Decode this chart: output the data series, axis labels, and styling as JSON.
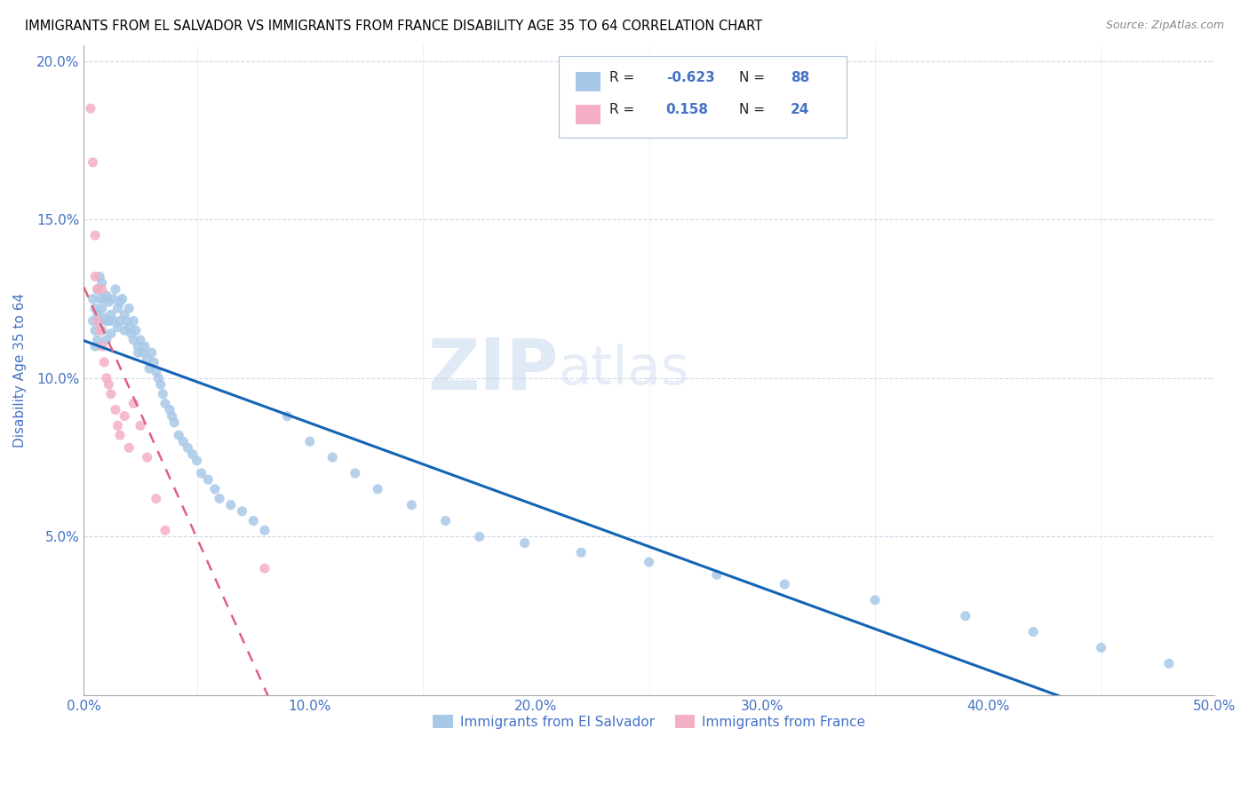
{
  "title": "IMMIGRANTS FROM EL SALVADOR VS IMMIGRANTS FROM FRANCE DISABILITY AGE 35 TO 64 CORRELATION CHART",
  "source": "Source: ZipAtlas.com",
  "ylabel_label": "Disability Age 35 to 64",
  "x_min": 0.0,
  "x_max": 0.5,
  "y_min": 0.0,
  "y_max": 0.205,
  "x_ticks": [
    0.0,
    0.1,
    0.2,
    0.3,
    0.4,
    0.5
  ],
  "x_tick_labels": [
    "0.0%",
    "10.0%",
    "20.0%",
    "30.0%",
    "40.0%",
    "50.0%"
  ],
  "y_ticks": [
    0.0,
    0.05,
    0.1,
    0.15,
    0.2
  ],
  "y_tick_labels": [
    "",
    "5.0%",
    "10.0%",
    "15.0%",
    "20.0%"
  ],
  "el_salvador_color": "#a8c8e8",
  "france_color": "#f4afc4",
  "el_salvador_line_color": "#1464b4",
  "france_line_color": "#e06080",
  "legend_R_el_salvador": "-0.623",
  "legend_N_el_salvador": "88",
  "legend_R_france": "0.158",
  "legend_N_france": "24",
  "watermark_zip": "ZIP",
  "watermark_atlas": "atlas",
  "el_salvador_x": [
    0.004,
    0.004,
    0.005,
    0.005,
    0.005,
    0.006,
    0.006,
    0.006,
    0.007,
    0.007,
    0.007,
    0.008,
    0.008,
    0.008,
    0.009,
    0.009,
    0.01,
    0.01,
    0.01,
    0.011,
    0.011,
    0.012,
    0.012,
    0.013,
    0.013,
    0.014,
    0.015,
    0.015,
    0.016,
    0.016,
    0.017,
    0.018,
    0.018,
    0.019,
    0.02,
    0.02,
    0.021,
    0.022,
    0.022,
    0.023,
    0.024,
    0.024,
    0.025,
    0.026,
    0.027,
    0.028,
    0.029,
    0.03,
    0.031,
    0.032,
    0.033,
    0.034,
    0.035,
    0.036,
    0.038,
    0.039,
    0.04,
    0.042,
    0.044,
    0.046,
    0.048,
    0.05,
    0.052,
    0.055,
    0.058,
    0.06,
    0.065,
    0.07,
    0.075,
    0.08,
    0.09,
    0.1,
    0.11,
    0.12,
    0.13,
    0.145,
    0.16,
    0.175,
    0.195,
    0.22,
    0.25,
    0.28,
    0.31,
    0.35,
    0.39,
    0.42,
    0.45,
    0.48
  ],
  "el_salvador_y": [
    0.125,
    0.118,
    0.122,
    0.115,
    0.11,
    0.128,
    0.12,
    0.112,
    0.132,
    0.125,
    0.118,
    0.13,
    0.122,
    0.115,
    0.125,
    0.119,
    0.126,
    0.118,
    0.112,
    0.124,
    0.118,
    0.12,
    0.114,
    0.125,
    0.118,
    0.128,
    0.122,
    0.116,
    0.124,
    0.118,
    0.125,
    0.12,
    0.115,
    0.118,
    0.122,
    0.116,
    0.114,
    0.118,
    0.112,
    0.115,
    0.11,
    0.108,
    0.112,
    0.108,
    0.11,
    0.106,
    0.103,
    0.108,
    0.105,
    0.102,
    0.1,
    0.098,
    0.095,
    0.092,
    0.09,
    0.088,
    0.086,
    0.082,
    0.08,
    0.078,
    0.076,
    0.074,
    0.07,
    0.068,
    0.065,
    0.062,
    0.06,
    0.058,
    0.055,
    0.052,
    0.088,
    0.08,
    0.075,
    0.07,
    0.065,
    0.06,
    0.055,
    0.05,
    0.048,
    0.045,
    0.042,
    0.038,
    0.035,
    0.03,
    0.025,
    0.02,
    0.015,
    0.01
  ],
  "france_x": [
    0.003,
    0.004,
    0.005,
    0.005,
    0.006,
    0.006,
    0.007,
    0.008,
    0.008,
    0.009,
    0.01,
    0.011,
    0.012,
    0.014,
    0.015,
    0.016,
    0.018,
    0.02,
    0.022,
    0.025,
    0.028,
    0.032,
    0.036,
    0.08
  ],
  "france_y": [
    0.185,
    0.168,
    0.145,
    0.132,
    0.128,
    0.118,
    0.115,
    0.11,
    0.128,
    0.105,
    0.1,
    0.098,
    0.095,
    0.09,
    0.085,
    0.082,
    0.088,
    0.078,
    0.092,
    0.085,
    0.075,
    0.062,
    0.052,
    0.04
  ]
}
